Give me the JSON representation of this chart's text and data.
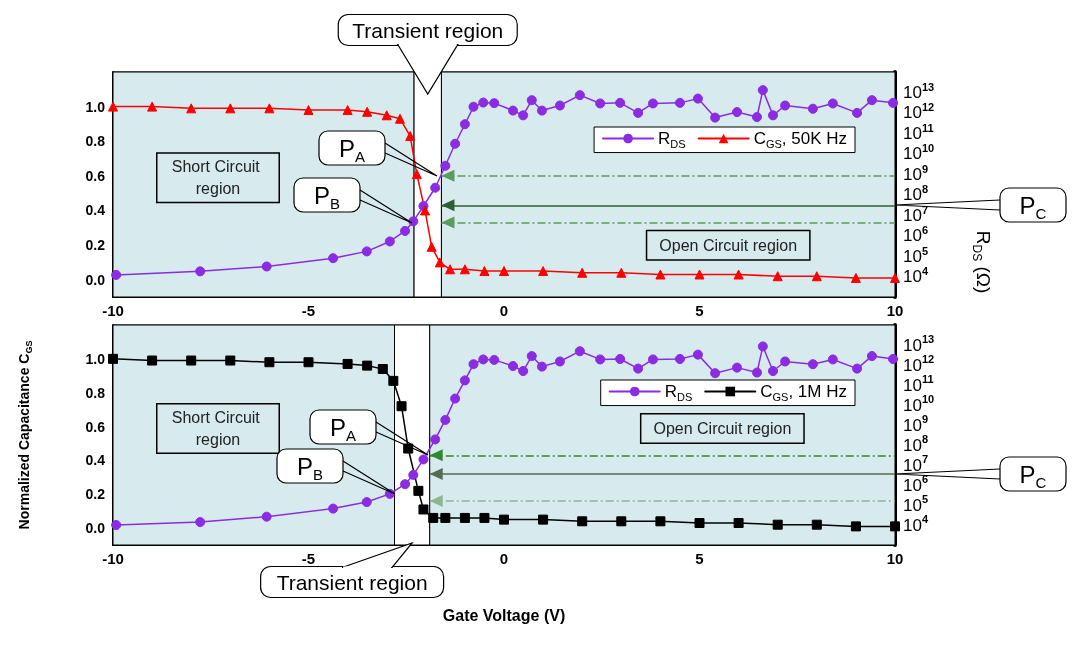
{
  "chart_data": [
    {
      "type": "line",
      "y2label": "R$_{DS}$ (Ω)",
      "xlim": [
        -10,
        10
      ],
      "xticks": [
        -10,
        -5,
        0,
        5,
        10
      ],
      "ylim": [
        -0.1,
        1.2
      ],
      "yticks": [
        {
          "value": 0,
          "label": "0.0"
        },
        {
          "value": 0.2,
          "label": "0.2"
        },
        {
          "value": 0.4,
          "label": "0.4"
        },
        {
          "value": 0.6,
          "label": "0.6"
        },
        {
          "value": 0.8,
          "label": "0.8"
        },
        {
          "value": 1,
          "label": "1.0"
        }
      ],
      "log": "y2",
      "y2lim": [
        1000.0,
        100000000000000.0
      ],
      "y2ticks": [
        {
          "value": 10000.0,
          "label": "10$^{4}$"
        },
        {
          "value": 100000.0,
          "label": "10$^{5}$"
        },
        {
          "value": 1000000.0,
          "label": "10$^{6}$"
        },
        {
          "value": 10000000.0,
          "label": "10$^{7}$"
        },
        {
          "value": 100000000.0,
          "label": "10$^{8}$"
        },
        {
          "value": 1000000000.0,
          "label": "10$^{9}$"
        },
        {
          "value": 10000000000.0,
          "label": "10$^{10}$"
        },
        {
          "value": 100000000000.0,
          "label": "10$^{11}$"
        },
        {
          "value": 1000000000000.0,
          "label": "10$^{12}$"
        },
        {
          "value": 10000000000000.0,
          "label": "10$^{13}$"
        }
      ],
      "legend": "top right",
      "series": [
        {
          "name": "R$_{DS}$",
          "color": "#8b2be2",
          "axis": "y2",
          "marker": "circle",
          "x": [
            -9.92,
            -7.77,
            -6.07,
            -4.37,
            -3.51,
            -2.92,
            -2.53,
            -2.32,
            -2.06,
            -1.76,
            -1.5,
            -1.25,
            -1.0,
            -0.78,
            -0.53,
            -0.25,
            0.23,
            0.49,
            0.71,
            0.97,
            1.43,
            1.94,
            2.46,
            2.97,
            3.43,
            3.81,
            4.5,
            4.96,
            5.4,
            5.96,
            6.47,
            6.62,
            6.88,
            7.19,
            7.9,
            8.41,
            9.03,
            9.41,
            9.95
          ],
          "values": [
            12000.0,
            18000.0,
            31000.0,
            79000.0,
            170000.0,
            520000.0,
            1700000.0,
            5000000.0,
            28000000.0,
            220000000.0,
            2600000000.0,
            31000000000.0,
            280000000000.0,
            2000000000000.0,
            3200000000000.0,
            3000000000000.0,
            1300000000000.0,
            760000000000.0,
            4200000000000.0,
            1300000000000.0,
            2300000000000.0,
            7400000000000.0,
            2900000000000.0,
            3100000000000.0,
            1000000000000.0,
            2900000000000.0,
            3100000000000.0,
            5000000000000.0,
            590000000000.0,
            1100000000000.0,
            630000000000.0,
            13000000000000.0,
            760000000000.0,
            2300000000000.0,
            1600000000000.0,
            2900000000000.0,
            1000000000000.0,
            4200000000000.0,
            3100000000000.0
          ]
        },
        {
          "name": "C$_{GS}$, 50K Hz",
          "color": "#ff0000",
          "marker": "triangle",
          "x": [
            -10,
            -9,
            -8,
            -7,
            -6,
            -5,
            -4,
            -3.5,
            -3,
            -2.66,
            -2.4,
            -2.23,
            -2.02,
            -1.85,
            -1.64,
            -1.38,
            -1,
            -0.5,
            0,
            1,
            2,
            3,
            4,
            5,
            6,
            7,
            8,
            9,
            10
          ],
          "values": [
            1.0,
            1.0,
            0.99,
            0.99,
            0.99,
            0.98,
            0.98,
            0.97,
            0.95,
            0.93,
            0.83,
            0.61,
            0.4,
            0.19,
            0.1,
            0.06,
            0.06,
            0.05,
            0.05,
            0.05,
            0.04,
            0.04,
            0.03,
            0.03,
            0.03,
            0.02,
            0.02,
            0.01,
            0.01
          ]
        }
      ],
      "bands": [
        {
          "axis": "x",
          "from": -10,
          "to": -2.3,
          "label": "Short Circuit region",
          "color": "#d7ebee"
        },
        {
          "axis": "x",
          "from": -2.3,
          "to": -1.6,
          "label": "Transient region",
          "color": "#ffffff"
        },
        {
          "axis": "x",
          "from": -1.6,
          "to": 10,
          "label": "Open Circuit region",
          "color": "#d7ebee"
        }
      ],
      "ref_lines": [
        {
          "axis": "y",
          "value": 0.6,
          "color": "#5b9b5b",
          "line_style": "dashed"
        },
        {
          "axis": "y",
          "value": 0.43,
          "color": "#2f5f2f",
          "line_style": "solid"
        },
        {
          "axis": "y",
          "value": 0.33,
          "color": "#5b9b5b",
          "line_style": "dashed"
        }
      ],
      "annotations": [
        "P$_{A}$",
        "P$_{B}$",
        "P$_{C}$"
      ]
    },
    {
      "type": "line",
      "xlabel": "Gate Voltage (V)",
      "ylabel": "Normalized Capacitance C$_{GS}$",
      "xlim": [
        -10,
        10
      ],
      "xticks": [
        -10,
        -5,
        0,
        5,
        10
      ],
      "ylim": [
        -0.1,
        1.2
      ],
      "yticks": [
        {
          "value": 0,
          "label": "0.0"
        },
        {
          "value": 0.2,
          "label": "0.2"
        },
        {
          "value": 0.4,
          "label": "0.4"
        },
        {
          "value": 0.6,
          "label": "0.6"
        },
        {
          "value": 0.8,
          "label": "0.8"
        },
        {
          "value": 1,
          "label": "1.0"
        }
      ],
      "log": "y2",
      "y2lim": [
        1000.0,
        100000000000000.0
      ],
      "y2ticks": [
        {
          "value": 10000.0,
          "label": "10$^{4}$"
        },
        {
          "value": 100000.0,
          "label": "10$^{5}$"
        },
        {
          "value": 1000000.0,
          "label": "10$^{6}$"
        },
        {
          "value": 10000000.0,
          "label": "10$^{7}$"
        },
        {
          "value": 100000000.0,
          "label": "10$^{8}$"
        },
        {
          "value": 1000000000.0,
          "label": "10$^{9}$"
        },
        {
          "value": 10000000000.0,
          "label": "10$^{10}$"
        },
        {
          "value": 100000000000.0,
          "label": "10$^{11}$"
        },
        {
          "value": 1000000000000.0,
          "label": "10$^{12}$"
        },
        {
          "value": 10000000000000.0,
          "label": "10$^{13}$"
        }
      ],
      "legend": "top right",
      "series": [
        {
          "name": "R$_{DS}$",
          "color": "#8b2be2",
          "axis": "y2",
          "marker": "circle",
          "x": [
            -9.92,
            -7.77,
            -6.07,
            -4.37,
            -3.51,
            -2.92,
            -2.53,
            -2.32,
            -2.06,
            -1.76,
            -1.5,
            -1.25,
            -1.0,
            -0.78,
            -0.53,
            -0.25,
            0.23,
            0.49,
            0.71,
            0.97,
            1.43,
            1.94,
            2.46,
            2.97,
            3.43,
            3.81,
            4.5,
            4.96,
            5.4,
            5.96,
            6.47,
            6.62,
            6.88,
            7.19,
            7.9,
            8.41,
            9.03,
            9.41,
            9.95
          ],
          "values": [
            10000.0,
            14000.0,
            26000.0,
            66000.0,
            140000.0,
            360000.0,
            1100000.0,
            3200000.0,
            19000000.0,
            190000000.0,
            1800000000.0,
            21000000000.0,
            170000000000.0,
            1100000000000.0,
            1900000000000.0,
            1800000000000.0,
            890000000000.0,
            500000000000.0,
            2800000000000.0,
            830000000000.0,
            1500000000000.0,
            4900000000000.0,
            1900000000000.0,
            2000000000000.0,
            660000000000.0,
            1900000000000.0,
            2000000000000.0,
            3300000000000.0,
            390000000000.0,
            740000000000.0,
            420000000000.0,
            8500000000000.0,
            500000000000.0,
            1500000000000.0,
            1100000000000.0,
            1900000000000.0,
            660000000000.0,
            2800000000000.0,
            2000000000000.0
          ]
        },
        {
          "name": "C$_{GS}$, 1M Hz",
          "color": "#000000",
          "marker": "square",
          "x": [
            -10,
            -9,
            -8,
            -7,
            -6,
            -5,
            -4,
            -3.5,
            -3.1,
            -2.83,
            -2.62,
            -2.45,
            -2.19,
            -2.06,
            -1.81,
            -1.5,
            -1,
            -0.5,
            0,
            1,
            2,
            3,
            4,
            5,
            6,
            7,
            8,
            9,
            10
          ],
          "values": [
            1.0,
            0.99,
            0.99,
            0.99,
            0.98,
            0.98,
            0.97,
            0.96,
            0.94,
            0.87,
            0.72,
            0.47,
            0.22,
            0.11,
            0.06,
            0.06,
            0.06,
            0.06,
            0.05,
            0.05,
            0.04,
            0.04,
            0.04,
            0.03,
            0.03,
            0.02,
            0.02,
            0.01,
            0.01
          ]
        }
      ],
      "bands": [
        {
          "axis": "x",
          "from": -10,
          "to": -2.8,
          "label": "Short Circuit region",
          "color": "#d7ebee"
        },
        {
          "axis": "x",
          "from": -2.8,
          "to": -1.9,
          "label": "Transient region",
          "color": "#ffffff"
        },
        {
          "axis": "x",
          "from": -1.9,
          "to": 10,
          "label": "Open Circuit region",
          "color": "#d7ebee"
        }
      ],
      "ref_lines": [
        {
          "axis": "y",
          "value": 0.43,
          "color": "#2f8a2f",
          "line_style": "dashed"
        },
        {
          "axis": "y",
          "value": 0.32,
          "color": "#556b55",
          "line_style": "solid"
        },
        {
          "axis": "y",
          "value": 0.16,
          "color": "#8fb58f",
          "line_style": "dashed"
        }
      ],
      "annotations": [
        "P$_{A}$",
        "P$_{B}$",
        "P$_{C}$"
      ]
    }
  ]
}
